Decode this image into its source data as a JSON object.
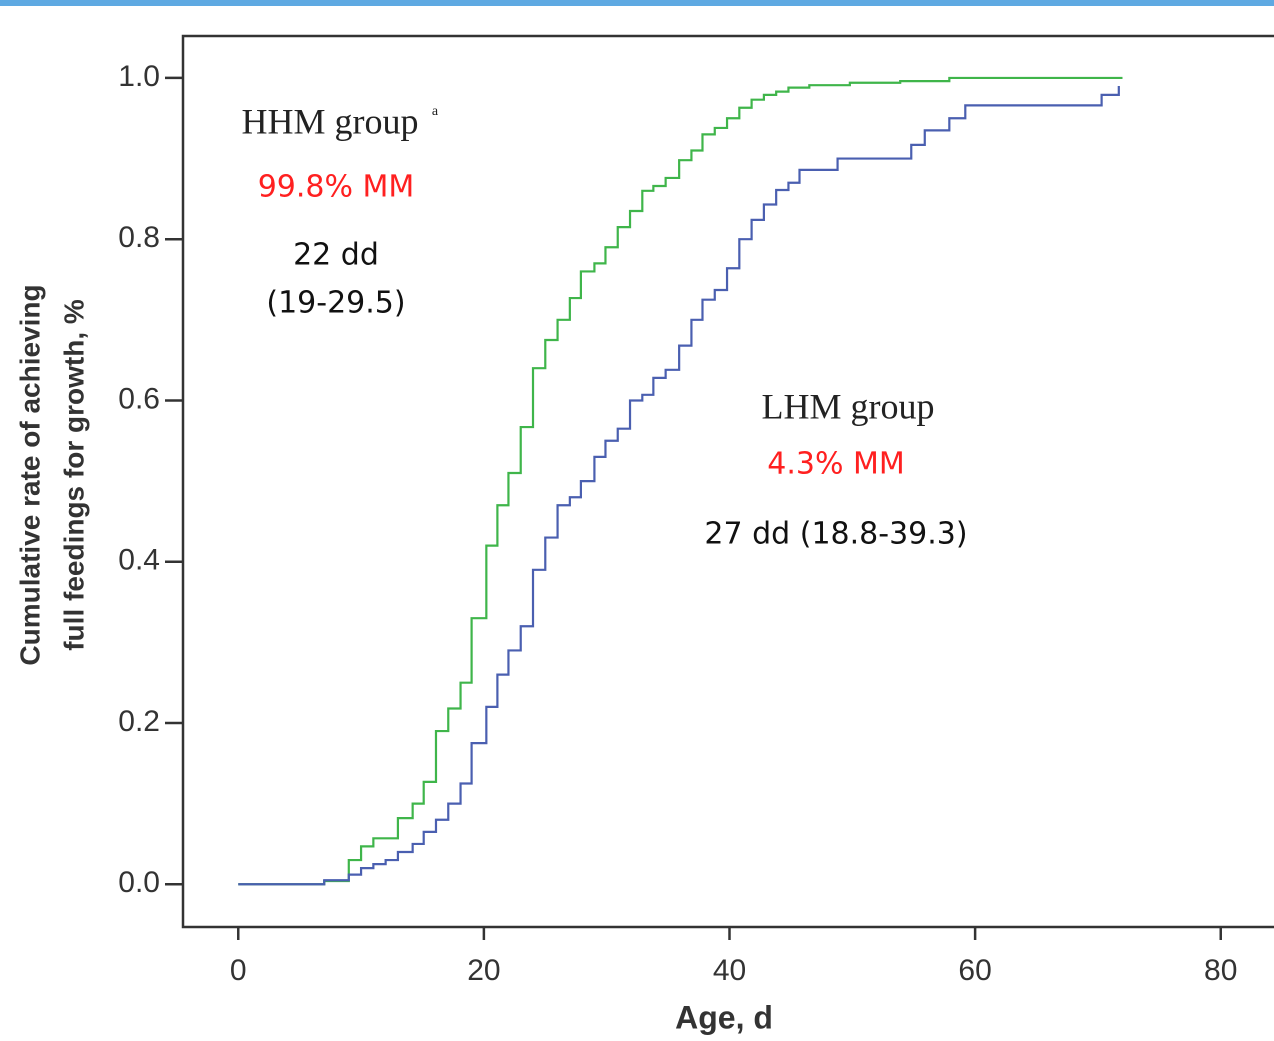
{
  "chart_data": {
    "type": "line",
    "step": true,
    "xlabel": "Age, d",
    "ylabel": [
      "Cumulative rate of achieving",
      "full feedings for growth, %"
    ],
    "xlim": [
      -4.5,
      84.5
    ],
    "ylim": [
      -0.053,
      1.052
    ],
    "xticks": [
      0,
      20,
      40,
      60,
      80
    ],
    "yticks": [
      {
        "value": 0,
        "label": "0.0"
      },
      0.2,
      0.4,
      0.6,
      0.8,
      {
        "value": 1,
        "label": "1.0"
      }
    ],
    "series": [
      {
        "name": "HHM group",
        "color": "#3fb54a",
        "x": [
          0,
          7,
          9,
          10,
          11,
          13,
          14.2,
          15.1,
          16.1,
          17.1,
          18.1,
          19,
          20.2,
          21.1,
          22,
          23,
          24,
          25,
          26,
          27,
          27.9,
          29,
          29.9,
          30.9,
          31.9,
          32.9,
          33.8,
          34.8,
          35.9,
          36.9,
          37.8,
          38.8,
          39.8,
          40.8,
          41.8,
          42.8,
          43.8,
          44.8,
          46.5,
          49.8,
          53.9,
          57.9,
          72
        ],
        "values": [
          0,
          0.004,
          0.03,
          0.047,
          0.057,
          0.082,
          0.1,
          0.127,
          0.19,
          0.218,
          0.25,
          0.33,
          0.42,
          0.47,
          0.51,
          0.567,
          0.64,
          0.675,
          0.7,
          0.727,
          0.76,
          0.77,
          0.79,
          0.815,
          0.835,
          0.86,
          0.866,
          0.876,
          0.898,
          0.91,
          0.93,
          0.938,
          0.95,
          0.963,
          0.973,
          0.979,
          0.983,
          0.988,
          0.991,
          0.994,
          0.996,
          1.0,
          1.0
        ]
      },
      {
        "name": "LHM group",
        "color": "#4a5fb0",
        "x": [
          0,
          7,
          9,
          10,
          11,
          12,
          13,
          14.2,
          15.1,
          16.1,
          17.1,
          18.1,
          19,
          20.2,
          21.1,
          22,
          23,
          24,
          25,
          26,
          27,
          27.9,
          29,
          29.9,
          30.9,
          31.9,
          32.9,
          33.8,
          34.8,
          35.9,
          36.9,
          37.8,
          38.8,
          39.8,
          40.8,
          41.8,
          42.8,
          43.8,
          44.8,
          45.7,
          48.8,
          54.8,
          55.9,
          57.9,
          59.2,
          70.3,
          71.7
        ],
        "values": [
          0,
          0.005,
          0.012,
          0.02,
          0.025,
          0.03,
          0.04,
          0.05,
          0.065,
          0.08,
          0.1,
          0.125,
          0.175,
          0.22,
          0.26,
          0.29,
          0.32,
          0.39,
          0.43,
          0.47,
          0.48,
          0.5,
          0.53,
          0.55,
          0.565,
          0.6,
          0.607,
          0.628,
          0.638,
          0.668,
          0.7,
          0.725,
          0.737,
          0.764,
          0.8,
          0.824,
          0.843,
          0.861,
          0.87,
          0.886,
          0.9,
          0.917,
          0.935,
          0.95,
          0.966,
          0.979,
          0.99
        ]
      }
    ],
    "annotations": [
      {
        "text": "HHM group",
        "color": "#222222"
      },
      {
        "text": "a",
        "color": "#222222"
      },
      {
        "text": "99.8% MM",
        "color": "#ff2020"
      },
      {
        "text": "22 dd",
        "color": "#111111"
      },
      {
        "text": "(19-29.5)",
        "color": "#111111"
      },
      {
        "text": "LHM group",
        "color": "#222222"
      },
      {
        "text": "4.3% MM",
        "color": "#ff2020"
      },
      {
        "text": "27 dd (18.8-39.3)",
        "color": "#111111"
      }
    ]
  }
}
